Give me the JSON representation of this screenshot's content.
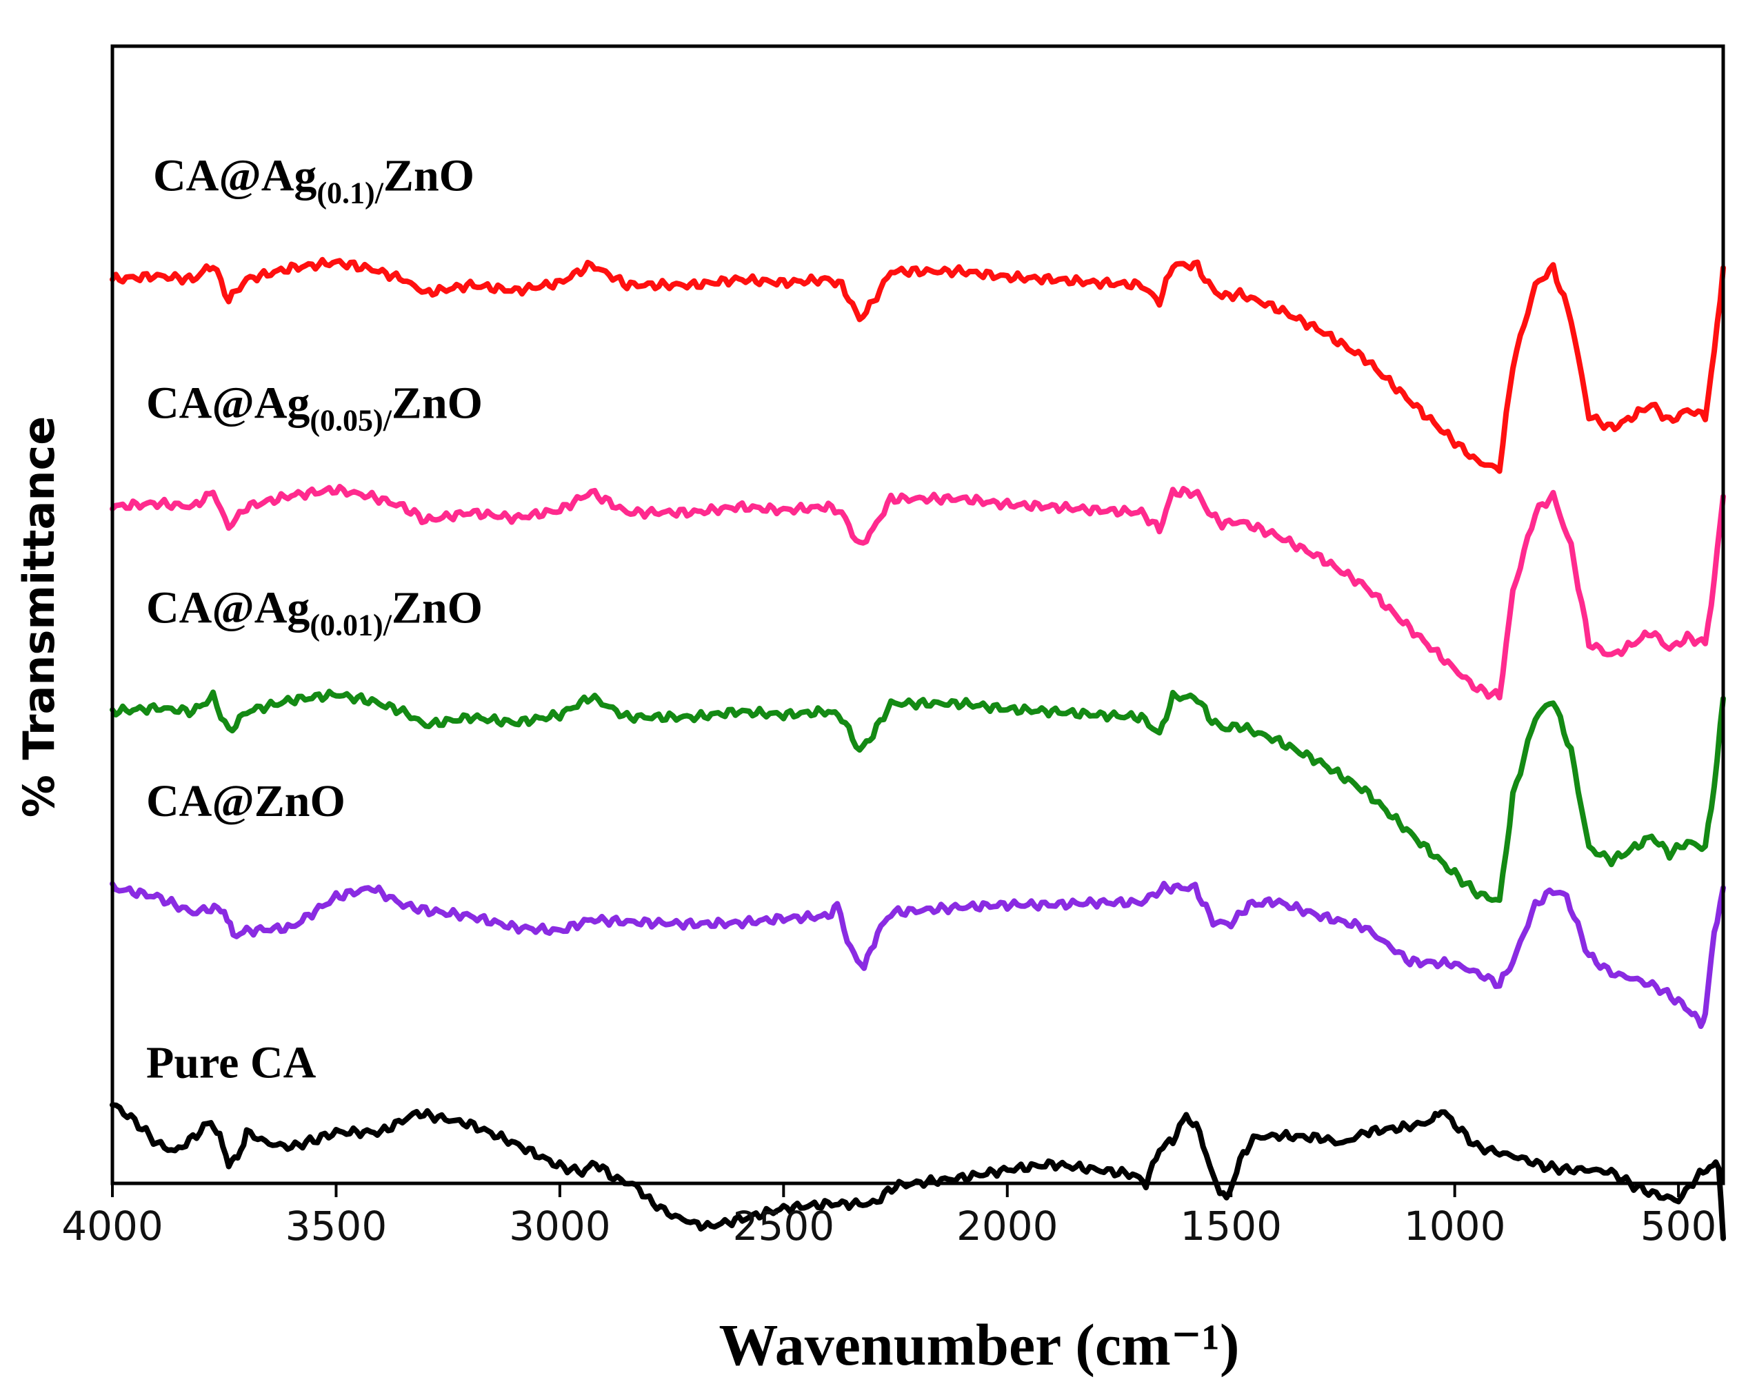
{
  "chart_data": {
    "type": "line",
    "title": "",
    "xlabel": "Wavenumber (cm⁻¹)",
    "ylabel": "% Transmittance",
    "xlim": [
      4000,
      400
    ],
    "x_reversed": true,
    "ylim": [
      0,
      100
    ],
    "y_ticks_shown": false,
    "grid": false,
    "xticks": [
      4000,
      3500,
      3000,
      2500,
      2000,
      1500,
      1000,
      500
    ],
    "xtick_labels": [
      "4000",
      "3500",
      "3000",
      "2500",
      "2000",
      "1500",
      "1000",
      "500"
    ],
    "series": [
      {
        "name": "CA@Ag(0.1)/ZnO",
        "label_main": "CA@Ag",
        "label_sub": "(0.1)/",
        "label_end": "ZnO",
        "color": "#ff1010",
        "offset": 81,
        "points": [
          [
            4000,
            1.5
          ],
          [
            3900,
            1.2
          ],
          [
            3820,
            1.5
          ],
          [
            3775,
            0.2
          ],
          [
            3740,
            3.3
          ],
          [
            3700,
            1.5
          ],
          [
            3600,
            0.5
          ],
          [
            3500,
            0
          ],
          [
            3420,
            0.6
          ],
          [
            3350,
            1.5
          ],
          [
            3300,
            2.7
          ],
          [
            3200,
            2
          ],
          [
            3100,
            2.5
          ],
          [
            3000,
            1.8
          ],
          [
            2930,
            0.2
          ],
          [
            2850,
            2
          ],
          [
            2700,
            2
          ],
          [
            2600,
            1.5
          ],
          [
            2500,
            1.8
          ],
          [
            2400,
            1.5
          ],
          [
            2370,
            2
          ],
          [
            2330,
            5
          ],
          [
            2300,
            3.5
          ],
          [
            2260,
            0.8
          ],
          [
            2100,
            0.8
          ],
          [
            2000,
            1.3
          ],
          [
            1900,
            1.5
          ],
          [
            1800,
            1.8
          ],
          [
            1700,
            2
          ],
          [
            1660,
            3.5
          ],
          [
            1630,
            0.2
          ],
          [
            1575,
            0.3
          ],
          [
            1550,
            2
          ],
          [
            1520,
            3
          ],
          [
            1480,
            2.8
          ],
          [
            1400,
            4
          ],
          [
            1300,
            6
          ],
          [
            1200,
            8.5
          ],
          [
            1100,
            12.2
          ],
          [
            1000,
            15.8
          ],
          [
            950,
            17.5
          ],
          [
            900,
            18.2
          ],
          [
            870,
            9
          ],
          [
            820,
            2
          ],
          [
            780,
            0.5
          ],
          [
            740,
            5
          ],
          [
            700,
            13.5
          ],
          [
            650,
            14.6
          ],
          [
            620,
            14
          ],
          [
            560,
            12.5
          ],
          [
            520,
            14
          ],
          [
            480,
            13
          ],
          [
            440,
            13.5
          ],
          [
            420,
            8
          ],
          [
            400,
            0.5
          ]
        ]
      },
      {
        "name": "CA@Ag(0.05)/ZnO",
        "label_main": "CA@Ag",
        "label_sub": "(0.05)/",
        "label_end": "ZnO",
        "color": "#ff2a8e",
        "offset": 61,
        "points": [
          [
            4000,
            1.5
          ],
          [
            3900,
            1.2
          ],
          [
            3820,
            1.5
          ],
          [
            3775,
            0.2
          ],
          [
            3740,
            3.3
          ],
          [
            3700,
            1.5
          ],
          [
            3600,
            0.5
          ],
          [
            3500,
            0
          ],
          [
            3420,
            0.6
          ],
          [
            3350,
            1.5
          ],
          [
            3300,
            2.7
          ],
          [
            3200,
            2
          ],
          [
            3100,
            2.5
          ],
          [
            3000,
            1.8
          ],
          [
            2930,
            0.2
          ],
          [
            2850,
            2
          ],
          [
            2700,
            2
          ],
          [
            2600,
            1.5
          ],
          [
            2500,
            1.8
          ],
          [
            2400,
            1.5
          ],
          [
            2370,
            2
          ],
          [
            2330,
            5
          ],
          [
            2300,
            3.5
          ],
          [
            2260,
            0.8
          ],
          [
            2100,
            0.8
          ],
          [
            2000,
            1.3
          ],
          [
            1900,
            1.5
          ],
          [
            1800,
            1.8
          ],
          [
            1700,
            2
          ],
          [
            1660,
            3.5
          ],
          [
            1630,
            0.2
          ],
          [
            1575,
            0.3
          ],
          [
            1550,
            2
          ],
          [
            1520,
            3
          ],
          [
            1480,
            2.8
          ],
          [
            1400,
            4
          ],
          [
            1300,
            6
          ],
          [
            1200,
            8.5
          ],
          [
            1100,
            12.2
          ],
          [
            1000,
            15.8
          ],
          [
            950,
            17.5
          ],
          [
            900,
            18.2
          ],
          [
            870,
            9
          ],
          [
            820,
            2
          ],
          [
            780,
            0.5
          ],
          [
            740,
            5
          ],
          [
            700,
            13.5
          ],
          [
            650,
            14.6
          ],
          [
            620,
            14
          ],
          [
            560,
            12.5
          ],
          [
            520,
            14
          ],
          [
            480,
            13
          ],
          [
            440,
            13.5
          ],
          [
            420,
            8
          ],
          [
            400,
            0.5
          ]
        ]
      },
      {
        "name": "CA@Ag(0.01)/ZnO",
        "label_main": "CA@Ag",
        "label_sub": "(0.01)/",
        "label_end": "ZnO",
        "color": "#148a14",
        "offset": 43,
        "points": [
          [
            4000,
            1.5
          ],
          [
            3900,
            1.2
          ],
          [
            3820,
            1.5
          ],
          [
            3775,
            0.2
          ],
          [
            3740,
            3.3
          ],
          [
            3700,
            1.5
          ],
          [
            3600,
            0.5
          ],
          [
            3500,
            0
          ],
          [
            3420,
            0.6
          ],
          [
            3350,
            1.5
          ],
          [
            3300,
            2.7
          ],
          [
            3200,
            2
          ],
          [
            3100,
            2.5
          ],
          [
            3000,
            1.8
          ],
          [
            2930,
            0.2
          ],
          [
            2850,
            2
          ],
          [
            2700,
            2
          ],
          [
            2600,
            1.5
          ],
          [
            2500,
            1.8
          ],
          [
            2400,
            1.5
          ],
          [
            2370,
            2
          ],
          [
            2330,
            5
          ],
          [
            2300,
            3.5
          ],
          [
            2260,
            0.8
          ],
          [
            2100,
            0.8
          ],
          [
            2000,
            1.3
          ],
          [
            1900,
            1.5
          ],
          [
            1800,
            1.8
          ],
          [
            1700,
            2
          ],
          [
            1660,
            3.5
          ],
          [
            1630,
            0.2
          ],
          [
            1575,
            0.3
          ],
          [
            1550,
            2
          ],
          [
            1520,
            3
          ],
          [
            1480,
            2.8
          ],
          [
            1400,
            4
          ],
          [
            1300,
            6
          ],
          [
            1200,
            8.5
          ],
          [
            1100,
            12.2
          ],
          [
            1000,
            15.8
          ],
          [
            950,
            17.5
          ],
          [
            900,
            18.2
          ],
          [
            870,
            9
          ],
          [
            820,
            2
          ],
          [
            780,
            0.5
          ],
          [
            740,
            5
          ],
          [
            700,
            13.5
          ],
          [
            650,
            14.6
          ],
          [
            620,
            14
          ],
          [
            560,
            12.5
          ],
          [
            520,
            14
          ],
          [
            480,
            13
          ],
          [
            440,
            13.5
          ],
          [
            420,
            8
          ],
          [
            400,
            0.5
          ]
        ]
      },
      {
        "name": "CA@ZnO",
        "label_main": "CA@ZnO",
        "label_sub": "",
        "label_end": "",
        "color": "#8a2be2",
        "offset": 26,
        "points": [
          [
            4000,
            0
          ],
          [
            3900,
            0.8
          ],
          [
            3820,
            2.2
          ],
          [
            3780,
            1.8
          ],
          [
            3750,
            2
          ],
          [
            3730,
            4.2
          ],
          [
            3700,
            3.8
          ],
          [
            3600,
            3.5
          ],
          [
            3500,
            0.8
          ],
          [
            3420,
            0
          ],
          [
            3350,
            1.5
          ],
          [
            3300,
            2
          ],
          [
            3200,
            2.5
          ],
          [
            3100,
            3.5
          ],
          [
            3000,
            3.8
          ],
          [
            2930,
            2.8
          ],
          [
            2850,
            3
          ],
          [
            2700,
            3.2
          ],
          [
            2600,
            3.1
          ],
          [
            2500,
            2.7
          ],
          [
            2400,
            2.5
          ],
          [
            2380,
            1.5
          ],
          [
            2350,
            5.5
          ],
          [
            2320,
            7
          ],
          [
            2290,
            4
          ],
          [
            2260,
            2.2
          ],
          [
            2100,
            1.7
          ],
          [
            2000,
            1.5
          ],
          [
            1900,
            1.5
          ],
          [
            1800,
            1.3
          ],
          [
            1700,
            1.3
          ],
          [
            1650,
            0
          ],
          [
            1580,
            0
          ],
          [
            1540,
            3
          ],
          [
            1500,
            3.2
          ],
          [
            1460,
            1.5
          ],
          [
            1400,
            1.2
          ],
          [
            1300,
            2.5
          ],
          [
            1200,
            3.5
          ],
          [
            1150,
            5
          ],
          [
            1100,
            6.5
          ],
          [
            1000,
            6.7
          ],
          [
            950,
            7.5
          ],
          [
            900,
            8.5
          ],
          [
            870,
            6.5
          ],
          [
            820,
            1.5
          ],
          [
            780,
            0.2
          ],
          [
            750,
            0.8
          ],
          [
            700,
            6
          ],
          [
            650,
            7.5
          ],
          [
            600,
            8
          ],
          [
            550,
            8.7
          ],
          [
            500,
            10
          ],
          [
            470,
            11
          ],
          [
            450,
            12
          ],
          [
            440,
            11
          ],
          [
            420,
            4
          ],
          [
            400,
            0
          ]
        ]
      },
      {
        "name": "Pure CA",
        "label_main": "Pure CA",
        "label_sub": "",
        "label_end": "",
        "color": "#000000",
        "offset": 7,
        "points": [
          [
            4000,
            0
          ],
          [
            3950,
            1.5
          ],
          [
            3900,
            3.5
          ],
          [
            3860,
            4.2
          ],
          [
            3820,
            3
          ],
          [
            3780,
            1.5
          ],
          [
            3760,
            3
          ],
          [
            3740,
            5.2
          ],
          [
            3720,
            4.8
          ],
          [
            3700,
            2.5
          ],
          [
            3650,
            3.5
          ],
          [
            3600,
            3.8
          ],
          [
            3550,
            3.2
          ],
          [
            3500,
            2.5
          ],
          [
            3400,
            2.5
          ],
          [
            3320,
            0.8
          ],
          [
            3200,
            1.8
          ],
          [
            3100,
            3.5
          ],
          [
            3000,
            5.5
          ],
          [
            2950,
            6
          ],
          [
            2920,
            5.2
          ],
          [
            2880,
            6.5
          ],
          [
            2830,
            7.2
          ],
          [
            2800,
            8.5
          ],
          [
            2750,
            9.8
          ],
          [
            2700,
            10.5
          ],
          [
            2670,
            10.8
          ],
          [
            2600,
            10.2
          ],
          [
            2500,
            9.2
          ],
          [
            2400,
            8.8
          ],
          [
            2300,
            8.8
          ],
          [
            2250,
            7.2
          ],
          [
            2100,
            6.5
          ],
          [
            2000,
            5.8
          ],
          [
            1900,
            5.3
          ],
          [
            1800,
            5.8
          ],
          [
            1720,
            6.2
          ],
          [
            1690,
            7
          ],
          [
            1660,
            4
          ],
          [
            1630,
            3.2
          ],
          [
            1600,
            1
          ],
          [
            1570,
            2.5
          ],
          [
            1540,
            6.5
          ],
          [
            1510,
            8.5
          ],
          [
            1480,
            5
          ],
          [
            1450,
            3
          ],
          [
            1400,
            2.8
          ],
          [
            1300,
            3
          ],
          [
            1250,
            3.5
          ],
          [
            1200,
            2.5
          ],
          [
            1100,
            2
          ],
          [
            1050,
            1.5
          ],
          [
            1030,
            0.5
          ],
          [
            1000,
            1.8
          ],
          [
            950,
            3.8
          ],
          [
            900,
            4.3
          ],
          [
            850,
            4.8
          ],
          [
            800,
            5.5
          ],
          [
            750,
            5.8
          ],
          [
            700,
            5.8
          ],
          [
            650,
            6
          ],
          [
            600,
            7.2
          ],
          [
            550,
            8
          ],
          [
            500,
            8.5
          ],
          [
            460,
            6.5
          ],
          [
            430,
            5.5
          ],
          [
            410,
            5.5
          ],
          [
            400,
            11.5
          ]
        ]
      }
    ]
  }
}
